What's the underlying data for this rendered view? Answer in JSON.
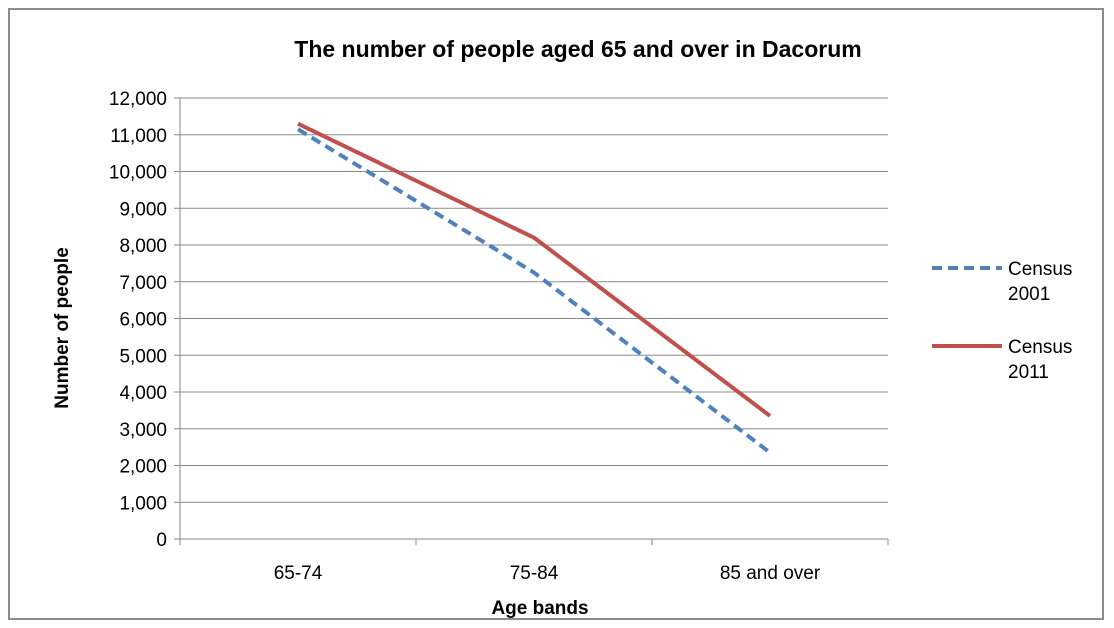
{
  "chart_data": {
    "type": "line",
    "title": "The number of people aged 65 and over in Dacorum",
    "xlabel": "Age bands",
    "ylabel": "Number of people",
    "categories": [
      "65-74",
      "75-84",
      "85 and over"
    ],
    "ylim": [
      0,
      12000
    ],
    "ytick_labels": [
      "0",
      "1,000",
      "2,000",
      "3,000",
      "4,000",
      "5,000",
      "6,000",
      "7,000",
      "8,000",
      "9,000",
      "10,000",
      "11,000",
      "12,000"
    ],
    "grid": true,
    "legend_position": "right",
    "series": [
      {
        "name_lines": [
          "Census",
          "2001"
        ],
        "values": [
          11150,
          7250,
          2350
        ],
        "color": "#4f81bd",
        "dash": "dashed"
      },
      {
        "name_lines": [
          "Census",
          "2011"
        ],
        "values": [
          11300,
          8200,
          3350
        ],
        "color": "#c0504d",
        "dash": "solid"
      }
    ]
  }
}
